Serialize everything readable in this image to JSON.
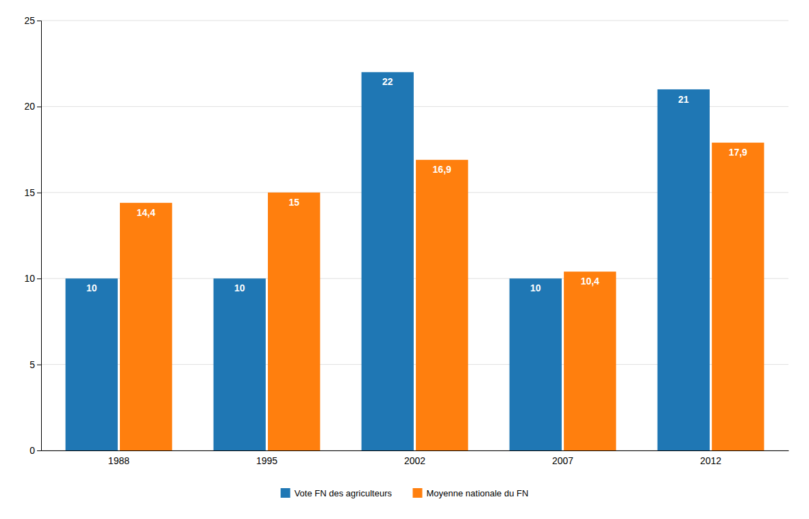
{
  "chart_data": {
    "type": "bar",
    "categories": [
      "1988",
      "1995",
      "2002",
      "2007",
      "2012"
    ],
    "series": [
      {
        "name": "Vote FN des agriculteurs",
        "values": [
          10,
          10,
          22,
          10,
          21
        ]
      },
      {
        "name": "Moyenne nationale du FN",
        "values": [
          14.4,
          15,
          16.9,
          10.4,
          17.9
        ],
        "value_labels": [
          "14,4",
          "15",
          "16,9",
          "10,4",
          "17,9"
        ]
      }
    ],
    "ylim": [
      0,
      25
    ],
    "yticks": [
      0,
      5,
      10,
      15,
      20,
      25
    ],
    "grid": true,
    "data_labels": true,
    "legend": "bottom"
  }
}
